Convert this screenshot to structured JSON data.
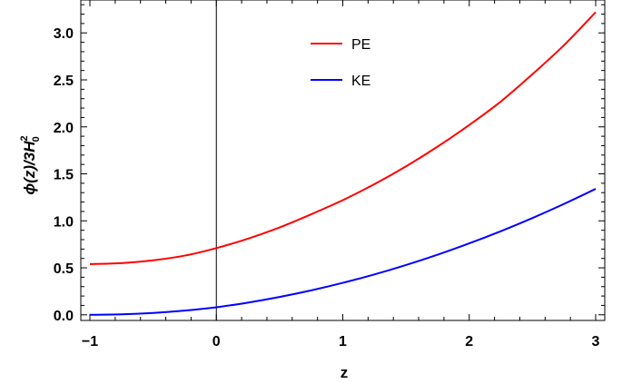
{
  "chart_data": {
    "type": "line",
    "xlabel": "z",
    "ylabel": {
      "prefix": "ϕ(z)/3",
      "symbol": "H",
      "superscript": "2",
      "subscript": "0"
    },
    "xlim": [
      -1,
      3
    ],
    "ylim": [
      -0.06,
      3.35
    ],
    "xticks": [
      -1,
      0,
      1,
      2,
      3
    ],
    "xtick_labels": [
      "−1",
      "0",
      "1",
      "2",
      "3"
    ],
    "yticks": [
      0.0,
      0.5,
      1.0,
      1.5,
      2.0,
      2.5,
      3.0
    ],
    "ytick_labels": [
      "0.0",
      "0.5",
      "1.0",
      "1.5",
      "2.0",
      "2.5",
      "3.0"
    ],
    "vertical_line_x": 0,
    "legend_position": "top-center",
    "grid": false,
    "series": [
      {
        "name": "PE",
        "color": "#ff0000",
        "x": [
          -1,
          -0.75,
          -0.5,
          -0.25,
          0,
          0.25,
          0.5,
          0.75,
          1,
          1.25,
          1.5,
          1.75,
          2,
          2.25,
          2.5,
          2.75,
          3
        ],
        "y": [
          0.54,
          0.55,
          0.58,
          0.63,
          0.71,
          0.81,
          0.93,
          1.07,
          1.22,
          1.39,
          1.58,
          1.79,
          2.02,
          2.27,
          2.56,
          2.87,
          3.22
        ]
      },
      {
        "name": "KE",
        "color": "#0000ff",
        "x": [
          -1,
          -0.75,
          -0.5,
          -0.25,
          0,
          0.25,
          0.5,
          0.75,
          1,
          1.25,
          1.5,
          1.75,
          2,
          2.25,
          2.5,
          2.75,
          3
        ],
        "y": [
          0.0,
          0.005,
          0.02,
          0.045,
          0.08,
          0.13,
          0.19,
          0.26,
          0.34,
          0.43,
          0.53,
          0.64,
          0.76,
          0.89,
          1.03,
          1.18,
          1.34
        ]
      }
    ]
  }
}
